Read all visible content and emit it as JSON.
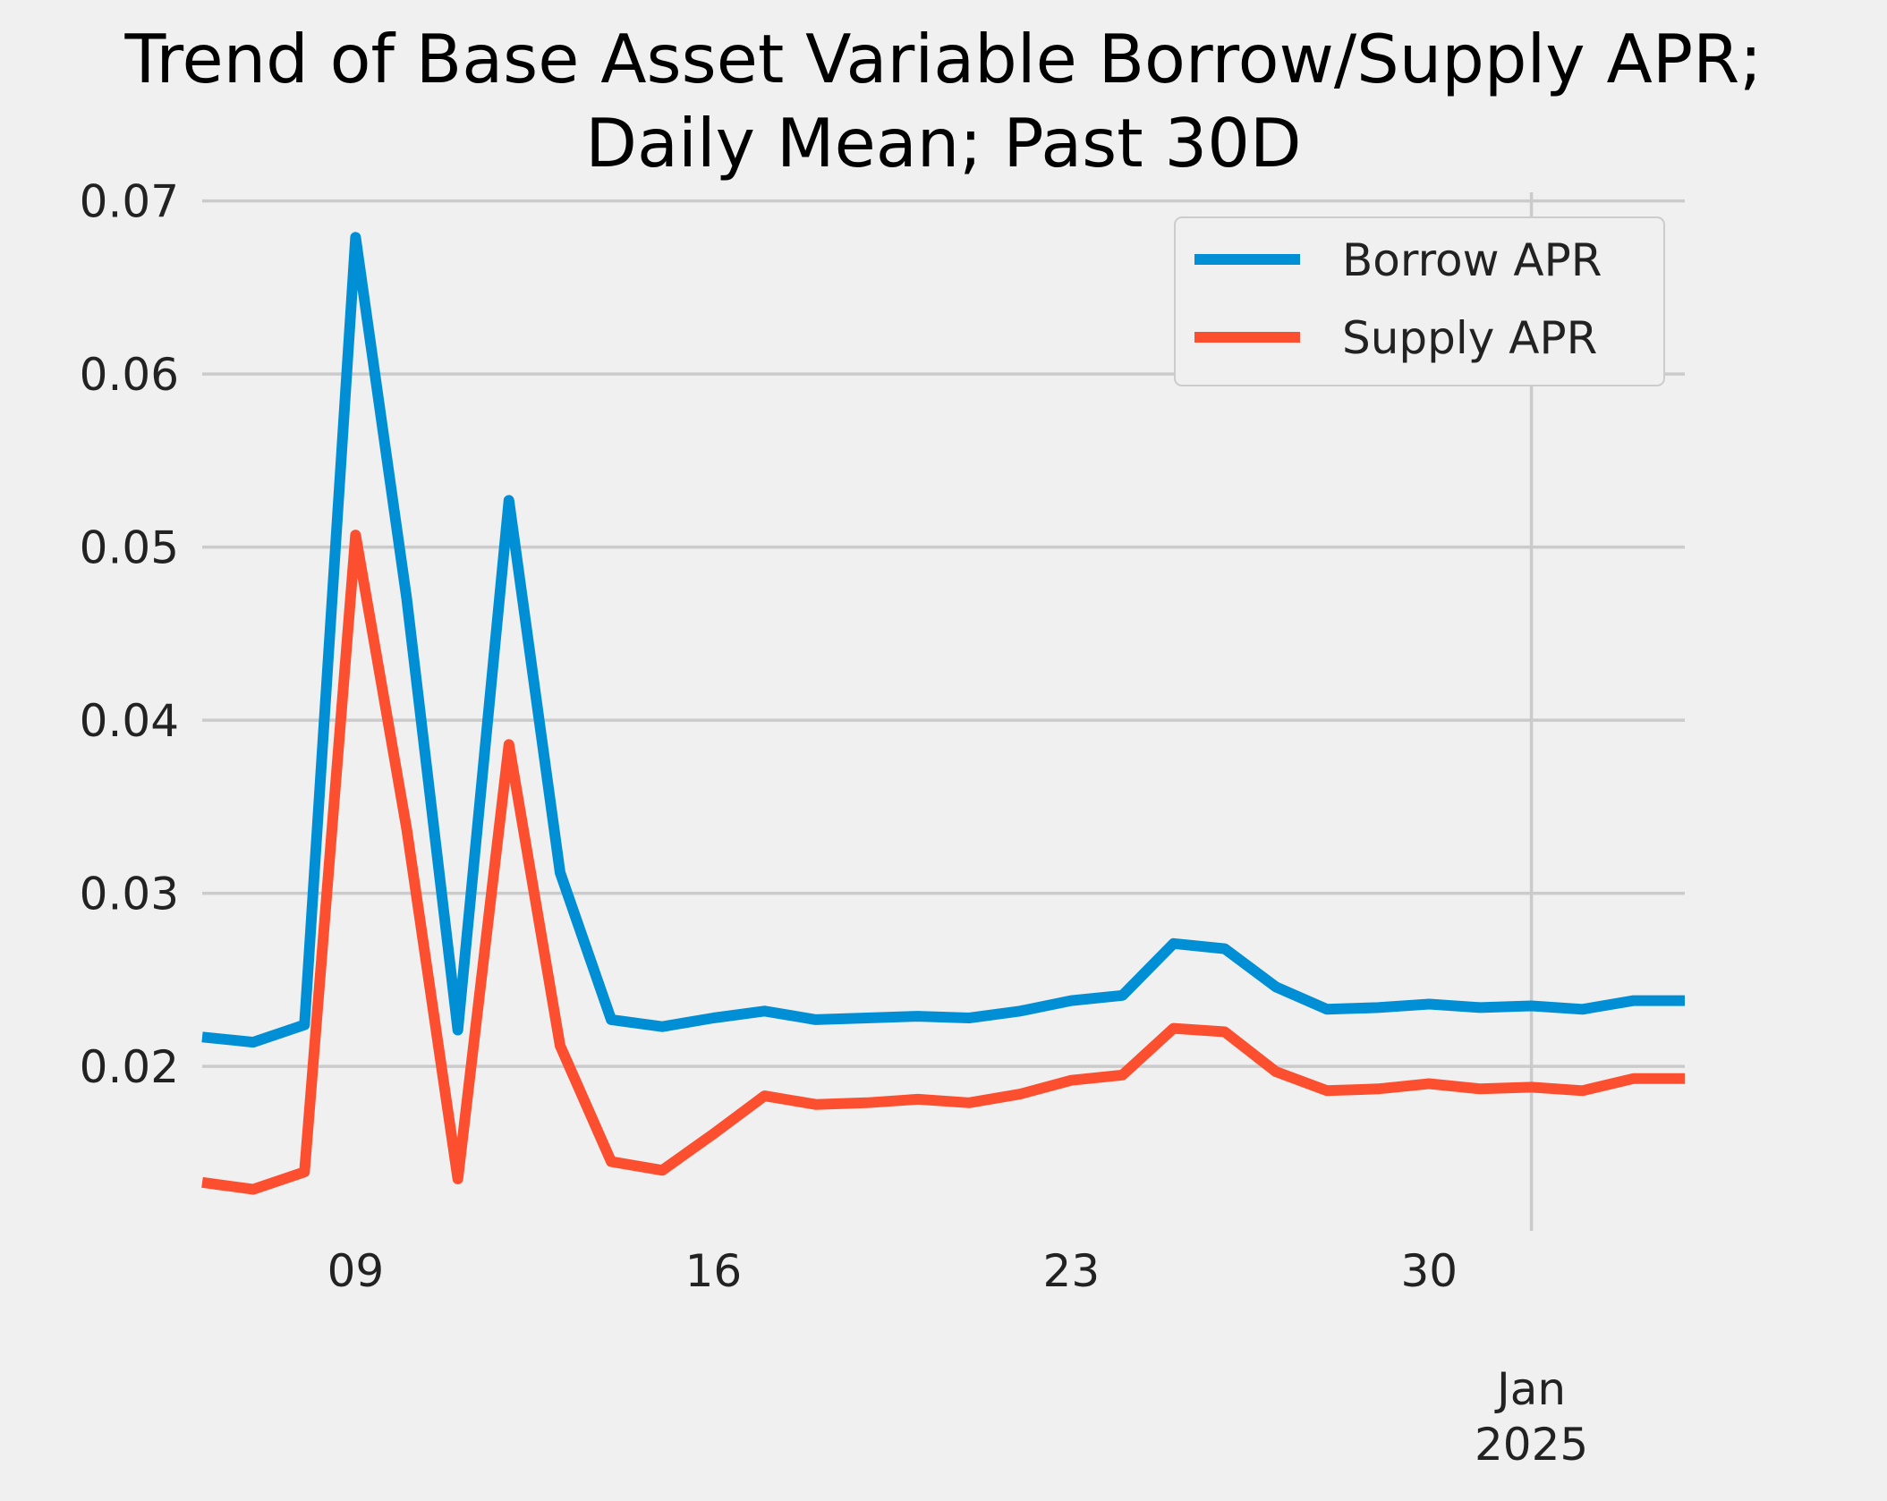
{
  "chart_data": {
    "type": "line",
    "title": "Trend of Base Asset Variable Borrow/Supply APR;\nDaily Mean; Past 30D",
    "title_lines": [
      "Trend of Base Asset Variable Borrow/Supply APR;",
      "Daily Mean; Past 30D"
    ],
    "xlabel": "",
    "ylabel": "",
    "x_type": "date",
    "x": [
      "2024-12-06",
      "2024-12-07",
      "2024-12-08",
      "2024-12-09",
      "2024-12-10",
      "2024-12-11",
      "2024-12-12",
      "2024-12-13",
      "2024-12-14",
      "2024-12-15",
      "2024-12-16",
      "2024-12-17",
      "2024-12-18",
      "2024-12-19",
      "2024-12-20",
      "2024-12-21",
      "2024-12-22",
      "2024-12-23",
      "2024-12-24",
      "2024-12-25",
      "2024-12-26",
      "2024-12-27",
      "2024-12-28",
      "2024-12-29",
      "2024-12-30",
      "2024-12-31",
      "2025-01-01",
      "2025-01-02",
      "2025-01-03",
      "2025-01-04"
    ],
    "xlim": [
      "2024-12-06",
      "2025-01-04"
    ],
    "ylim": [
      0.0105,
      0.0705
    ],
    "x_ticks": [
      {
        "date": "2024-12-09",
        "label": "09"
      },
      {
        "date": "2024-12-16",
        "label": "16"
      },
      {
        "date": "2024-12-23",
        "label": "23"
      },
      {
        "date": "2024-12-30",
        "label": "30"
      }
    ],
    "x_major_tick": {
      "date": "2025-01-01",
      "label_lines": [
        "Jan",
        "2025"
      ]
    },
    "y_ticks": [
      0.02,
      0.03,
      0.04,
      0.05,
      0.06,
      0.07
    ],
    "y_tick_labels": [
      "0.02",
      "0.03",
      "0.04",
      "0.05",
      "0.06",
      "0.07"
    ],
    "grid": true,
    "legend_position": "upper-right",
    "series": [
      {
        "name": "Borrow APR",
        "color": "#008fd5",
        "values": [
          0.0217,
          0.0214,
          0.0224,
          0.0679,
          0.047,
          0.0221,
          0.0527,
          0.0312,
          0.0227,
          0.0223,
          0.0228,
          0.0232,
          0.0227,
          0.0228,
          0.0229,
          0.0228,
          0.0232,
          0.0238,
          0.0241,
          0.0271,
          0.0268,
          0.0246,
          0.0233,
          0.0234,
          0.0236,
          0.0234,
          0.0235,
          0.0233,
          0.0238,
          0.0238
        ]
      },
      {
        "name": "Supply APR",
        "color": "#fc4f30",
        "values": [
          0.0133,
          0.0129,
          0.0139,
          0.0507,
          0.0337,
          0.0135,
          0.0386,
          0.0212,
          0.0145,
          0.014,
          0.0161,
          0.0183,
          0.0178,
          0.0179,
          0.0181,
          0.0179,
          0.0184,
          0.0192,
          0.0195,
          0.0222,
          0.022,
          0.0197,
          0.0186,
          0.0187,
          0.019,
          0.0187,
          0.0188,
          0.0186,
          0.0193,
          0.0193
        ]
      }
    ]
  }
}
